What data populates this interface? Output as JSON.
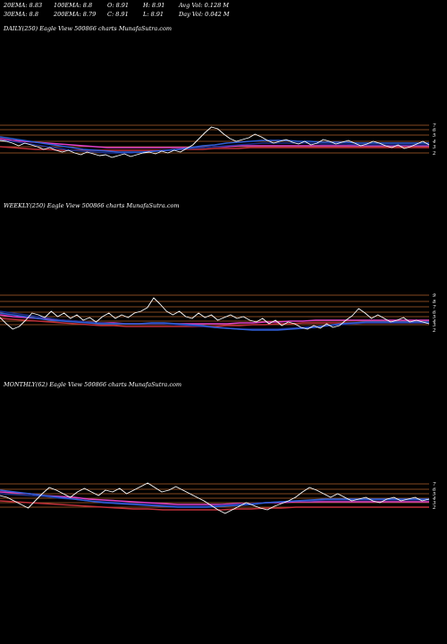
{
  "header": {
    "row1": [
      "20EMA: 8.83",
      "100EMA: 8.8",
      "O: 8.91",
      "H: 8.91",
      "Avg Vol: 0.128  M"
    ],
    "row2": [
      "30EMA: 8.8",
      "200EMA: 8.79",
      "C: 8.91",
      "L: 8.91",
      "Day Vol: 0.042  M"
    ]
  },
  "colors": {
    "background": "#000000",
    "price": "#ffffff",
    "ema_blue": "#2f5fd8",
    "ema_navy": "#1c2f8a",
    "ema_magenta": "#e040c8",
    "ema_red": "#c0303a",
    "ref_line": "#b0622a"
  },
  "chart_data": [
    {
      "type": "line",
      "label": "DAILY(250) Eagle  View  500866  charts MunafaSutra.com",
      "ticks": [
        "7",
        "6",
        "5",
        "4",
        "3",
        "2"
      ],
      "price": [
        157,
        158,
        160,
        163,
        160,
        162,
        164,
        167,
        165,
        168,
        170,
        168,
        171,
        173,
        170,
        172,
        174,
        173,
        176,
        174,
        172,
        175,
        173,
        171,
        170,
        172,
        169,
        171,
        168,
        170,
        166,
        162,
        155,
        148,
        142,
        144,
        150,
        155,
        158,
        156,
        154,
        150,
        153,
        157,
        160,
        158,
        156,
        159,
        161,
        158,
        162,
        160,
        156,
        158,
        161,
        159,
        157,
        160,
        163,
        161,
        158,
        160,
        163,
        165,
        162,
        166,
        164,
        161,
        158,
        162
      ],
      "ema_blue": [
        153,
        155,
        157,
        159,
        161,
        163,
        165,
        167,
        168,
        169,
        170,
        170,
        170,
        169,
        168,
        167,
        165,
        163,
        162,
        160,
        159,
        158,
        157,
        157,
        157,
        158,
        158,
        159,
        159,
        159,
        160,
        160,
        160,
        160,
        160,
        160,
        160
      ],
      "ema_navy": [
        157,
        158,
        160,
        162,
        164,
        166,
        168,
        169,
        170,
        171,
        171,
        171,
        170,
        169,
        168,
        167,
        166,
        165,
        164,
        163,
        162,
        161,
        160,
        160,
        160,
        160,
        160,
        161,
        161,
        161,
        162,
        162,
        162,
        162,
        162,
        162,
        162
      ],
      "ema_magenta": [
        155,
        157,
        158,
        159,
        160,
        161,
        162,
        163,
        164,
        165,
        165,
        165,
        165,
        165,
        165,
        165,
        165,
        165,
        164,
        164,
        163,
        163,
        163,
        163,
        163,
        163,
        163,
        163,
        163,
        163,
        163,
        163,
        163,
        163,
        163,
        163,
        163
      ],
      "ema_red": [
        164,
        165,
        166,
        167,
        167,
        168,
        168,
        168,
        168,
        168,
        168,
        168,
        168,
        168,
        168,
        167,
        167,
        167,
        166,
        166,
        166,
        165,
        165,
        165,
        165,
        165,
        165,
        165,
        165,
        165,
        165,
        165,
        165,
        165,
        165,
        165,
        165
      ],
      "ref_lines": [
        140,
        145,
        151,
        158,
        164,
        171
      ]
    },
    {
      "type": "line",
      "label": "WEEKLY(250) Eagle  View  500866  charts MunafaSutra.com",
      "ticks": [
        "9",
        "8",
        "7",
        "6",
        "5",
        "4",
        "3",
        "2"
      ],
      "price": [
        355,
        362,
        368,
        365,
        358,
        350,
        352,
        355,
        348,
        354,
        350,
        356,
        352,
        358,
        355,
        360,
        354,
        350,
        356,
        352,
        355,
        350,
        348,
        344,
        333,
        340,
        348,
        352,
        348,
        354,
        356,
        350,
        355,
        352,
        358,
        355,
        352,
        356,
        354,
        358,
        360,
        356,
        362,
        358,
        364,
        360,
        362,
        366,
        368,
        364,
        367,
        362,
        366,
        364,
        358,
        353,
        345,
        350,
        356,
        352,
        356,
        360,
        358,
        355,
        360,
        358,
        360,
        362
      ],
      "ema_blue": [
        350,
        352,
        354,
        356,
        358,
        359,
        360,
        361,
        362,
        362,
        362,
        362,
        361,
        361,
        362,
        363,
        364,
        366,
        367,
        368,
        369,
        369,
        369,
        368,
        367,
        366,
        364,
        362,
        361,
        360,
        360,
        360,
        360,
        360,
        360
      ],
      "ema_navy": [
        348,
        350,
        352,
        354,
        356,
        358,
        359,
        360,
        361,
        362,
        362,
        362,
        362,
        362,
        363,
        364,
        365,
        366,
        367,
        368,
        368,
        368,
        368,
        367,
        366,
        365,
        364,
        363,
        362,
        361,
        361,
        361,
        361,
        361,
        361
      ],
      "ema_magenta": [
        352,
        354,
        355,
        356,
        357,
        358,
        359,
        360,
        361,
        361,
        362,
        362,
        362,
        362,
        362,
        362,
        362,
        362,
        362,
        361,
        361,
        360,
        360,
        359,
        359,
        358,
        358,
        358,
        358,
        358,
        358,
        358,
        358,
        358,
        358
      ],
      "ema_red": [
        356,
        357,
        358,
        359,
        360,
        361,
        362,
        363,
        364,
        364,
        365,
        365,
        365,
        365,
        365,
        365,
        365,
        365,
        364,
        364,
        363,
        363,
        362,
        362,
        361,
        361,
        361,
        361,
        361,
        361,
        361,
        361,
        361,
        361,
        361
      ],
      "ref_lines": [
        330,
        337,
        343,
        349,
        354,
        359,
        363
      ]
    },
    {
      "type": "line",
      "label": "MONTHLY(62) Eagle  View  500866  charts MunafaSutra.com",
      "ticks": [
        "7",
        "6",
        "5",
        "4",
        "3",
        "2"
      ],
      "price": [
        554,
        556,
        560,
        564,
        568,
        560,
        552,
        545,
        548,
        552,
        556,
        550,
        546,
        550,
        554,
        548,
        550,
        546,
        552,
        548,
        544,
        540,
        545,
        550,
        548,
        544,
        548,
        552,
        556,
        560,
        565,
        570,
        574,
        570,
        566,
        562,
        565,
        568,
        570,
        566,
        563,
        560,
        556,
        550,
        545,
        548,
        552,
        556,
        552,
        556,
        560,
        558,
        556,
        560,
        562,
        558,
        556,
        560,
        558,
        556,
        560,
        558
      ],
      "ema_blue": [
        548,
        550,
        552,
        554,
        556,
        558,
        560,
        562,
        563,
        564,
        565,
        566,
        567,
        567,
        567,
        566,
        565,
        564,
        562,
        561,
        560,
        559,
        558,
        558,
        558,
        558,
        558,
        558,
        558,
        558
      ],
      "ema_navy": [
        552,
        553,
        554,
        555,
        557,
        558,
        560,
        561,
        562,
        563,
        564,
        565,
        566,
        566,
        566,
        565,
        564,
        563,
        562,
        561,
        560,
        560,
        559,
        559,
        559,
        559,
        559,
        559,
        559,
        559
      ],
      "ema_magenta": [
        550,
        551,
        552,
        554,
        555,
        556,
        558,
        559,
        560,
        561,
        562,
        563,
        564,
        564,
        564,
        564,
        563,
        563,
        562,
        562,
        561,
        561,
        561,
        561,
        561,
        561,
        561,
        561,
        561,
        561
      ],
      "ema_red": [
        560,
        561,
        562,
        563,
        564,
        565,
        566,
        567,
        568,
        569,
        569,
        570,
        570,
        570,
        570,
        570,
        569,
        569,
        568,
        568,
        567,
        567,
        567,
        567,
        567,
        567,
        567,
        567,
        567,
        567
      ],
      "ref_lines": [
        541,
        547,
        552,
        557,
        562,
        567
      ]
    }
  ]
}
